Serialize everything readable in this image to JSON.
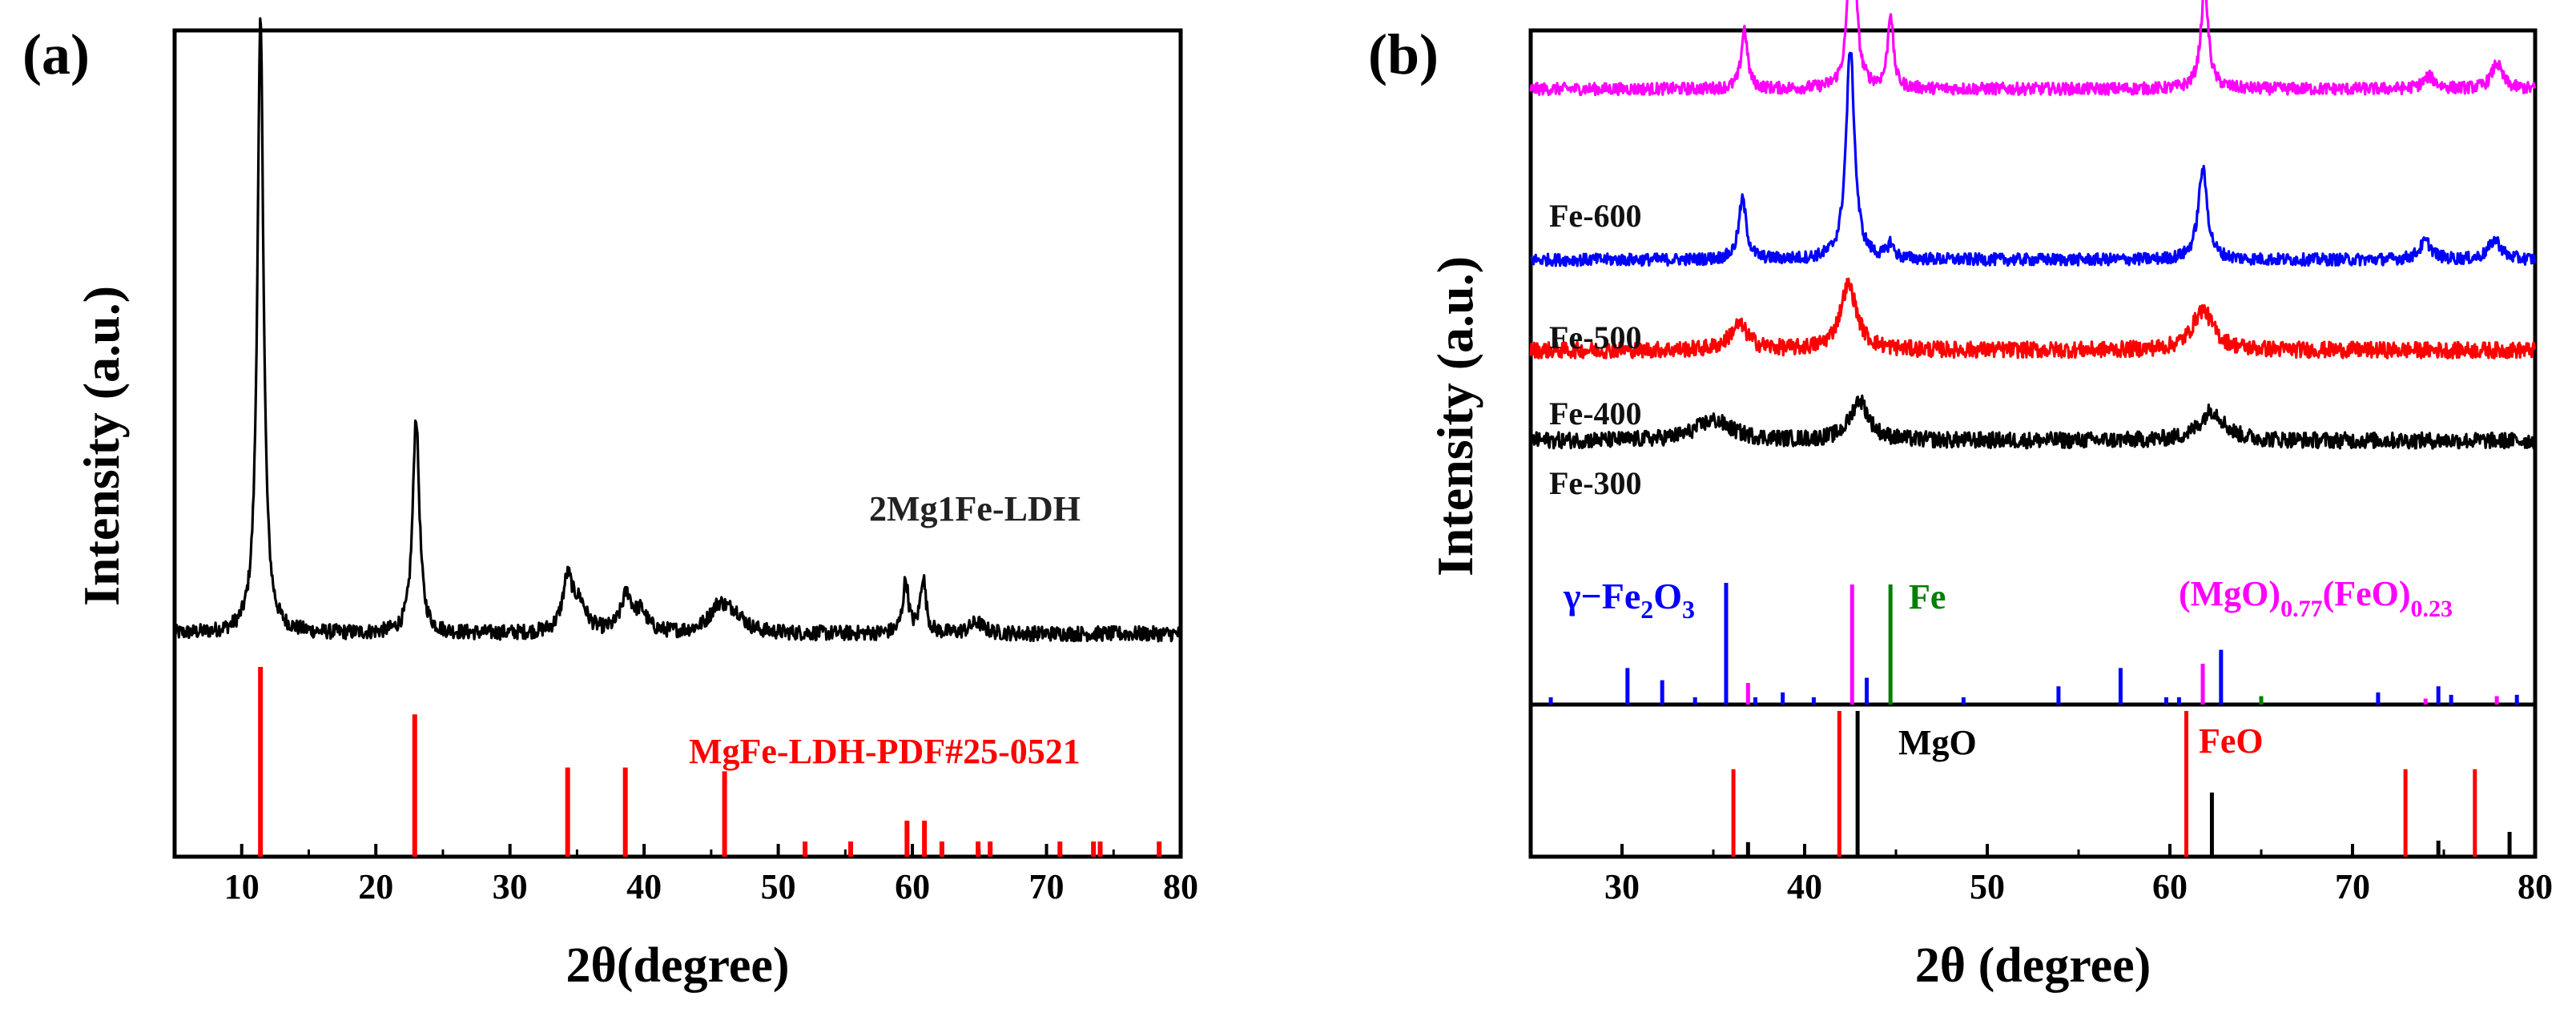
{
  "colors": {
    "axis": "#000000",
    "pattern_red": "#ff0000",
    "fe600": "#ff00ff",
    "fe500": "#0000ff",
    "fe400": "#ff0000",
    "fe300": "#000000",
    "gamma": "#0000ff",
    "fe_ref": "#008000",
    "mgofeo": "#ff00ff",
    "mgo": "#000000",
    "feo": "#ff0000"
  },
  "chart_data": [
    {
      "type": "line",
      "panel_label": "(a)",
      "xlabel": "2θ(degree)",
      "ylabel": "Intensity (a.u.)",
      "xlim": [
        5,
        80
      ],
      "xticks": [
        "10",
        "20",
        "30",
        "40",
        "50",
        "60",
        "70",
        "80"
      ],
      "y_units": "arbitrary",
      "series": [
        {
          "name": "2Mg1Fe-LDH",
          "baseline": 0.13,
          "noise": 0.01,
          "peaks": [
            {
              "x": 11.4,
              "h": 0.82,
              "w": 0.28
            },
            {
              "x": 23.0,
              "h": 0.29,
              "w": 0.3
            },
            {
              "x": 34.3,
              "h": 0.07,
              "w": 0.45
            },
            {
              "x": 35.2,
              "h": 0.035,
              "w": 0.6
            },
            {
              "x": 38.7,
              "h": 0.05,
              "w": 0.5
            },
            {
              "x": 39.8,
              "h": 0.025,
              "w": 0.5
            },
            {
              "x": 45.6,
              "h": 0.035,
              "w": 0.9
            },
            {
              "x": 46.8,
              "h": 0.02,
              "w": 0.8
            },
            {
              "x": 59.5,
              "h": 0.07,
              "w": 0.25
            },
            {
              "x": 60.8,
              "h": 0.075,
              "w": 0.25
            },
            {
              "x": 64.8,
              "h": 0.015,
              "w": 0.6
            }
          ]
        }
      ],
      "reference": {
        "name": "MgFe-LDH-PDF#25-0521",
        "positions": [
          11.4,
          22.9,
          34.3,
          38.6,
          46.0,
          52.0,
          55.4,
          59.6,
          60.9,
          62.2,
          64.9,
          65.8,
          71.0,
          73.5,
          74.0,
          78.4
        ],
        "intensities": [
          100,
          75,
          47,
          47,
          45,
          8,
          8,
          19,
          19,
          8,
          8,
          8,
          8,
          8,
          8,
          8
        ]
      },
      "annotations": [
        "2Mg1Fe-LDH",
        "MgFe-LDH-PDF#25-0521"
      ]
    },
    {
      "type": "line",
      "panel_label": "(b)",
      "xlabel": "2θ (degree)",
      "ylabel": "Intensity (a.u.)",
      "xlim": [
        25,
        80
      ],
      "xticks": [
        "30",
        "40",
        "50",
        "60",
        "70",
        "80"
      ],
      "y_units": "arbitrary",
      "series": [
        {
          "name": "Fe-600",
          "baseline": 0.76,
          "noise": 0.006,
          "peaks": [
            {
              "x": 36.7,
              "h": 0.06,
              "w": 0.2
            },
            {
              "x": 42.6,
              "h": 0.21,
              "w": 0.22
            },
            {
              "x": 44.7,
              "h": 0.075,
              "w": 0.18
            },
            {
              "x": 61.9,
              "h": 0.1,
              "w": 0.25
            },
            {
              "x": 74.2,
              "h": 0.012,
              "w": 0.4
            },
            {
              "x": 77.9,
              "h": 0.025,
              "w": 0.35
            }
          ]
        },
        {
          "name": "Fe-500",
          "baseline": 0.59,
          "noise": 0.006,
          "peaks": [
            {
              "x": 36.6,
              "h": 0.06,
              "w": 0.25
            },
            {
              "x": 42.5,
              "h": 0.21,
              "w": 0.28
            },
            {
              "x": 44.7,
              "h": 0.015,
              "w": 0.2
            },
            {
              "x": 61.8,
              "h": 0.09,
              "w": 0.3
            },
            {
              "x": 74.0,
              "h": 0.018,
              "w": 0.4
            },
            {
              "x": 77.8,
              "h": 0.02,
              "w": 0.4
            }
          ]
        },
        {
          "name": "Fe-400",
          "baseline": 0.5,
          "noise": 0.008,
          "peaks": [
            {
              "x": 36.4,
              "h": 0.025,
              "w": 0.6
            },
            {
              "x": 42.4,
              "h": 0.065,
              "w": 0.55
            },
            {
              "x": 61.8,
              "h": 0.04,
              "w": 0.7
            }
          ]
        },
        {
          "name": "Fe-300",
          "baseline": 0.41,
          "noise": 0.008,
          "peaks": [
            {
              "x": 35.0,
              "h": 0.02,
              "w": 1.2
            },
            {
              "x": 43.0,
              "h": 0.04,
              "w": 0.6
            },
            {
              "x": 62.3,
              "h": 0.03,
              "w": 0.8
            }
          ]
        }
      ],
      "references_top": [
        {
          "name": "γ−Fe2O3",
          "positions": [
            26.1,
            30.3,
            32.2,
            34.0,
            35.7,
            37.3,
            38.8,
            40.5,
            43.4,
            48.7,
            53.9,
            57.3,
            59.8,
            60.5,
            62.8,
            71.4,
            74.7,
            75.4,
            79.0
          ],
          "intensities": [
            6,
            30,
            20,
            6,
            100,
            6,
            10,
            6,
            22,
            6,
            15,
            30,
            6,
            6,
            45,
            10,
            15,
            8,
            8
          ]
        },
        {
          "name": "Fe",
          "positions": [
            44.7,
            65.0
          ],
          "intensities": [
            100,
            7
          ]
        },
        {
          "name": "(MgO)0.77(FeO)0.23",
          "positions": [
            36.9,
            42.6,
            61.8,
            74.0,
            77.9
          ],
          "intensities": [
            18,
            100,
            34,
            5,
            7
          ]
        }
      ],
      "references_bottom": [
        {
          "name": "MgO",
          "positions": [
            36.9,
            42.9,
            62.3,
            74.7,
            78.6
          ],
          "intensities": [
            10,
            100,
            44,
            11,
            17
          ]
        },
        {
          "name": "FeO",
          "positions": [
            36.1,
            41.9,
            60.9,
            72.9,
            76.7
          ],
          "intensities": [
            60,
            100,
            100,
            60,
            60
          ]
        }
      ],
      "annotations": [
        "Fe-600",
        "Fe-500",
        "Fe-400",
        "Fe-300",
        "γ−Fe2O3",
        "Fe",
        "(MgO)0.77(FeO)0.23",
        "MgO",
        "FeO"
      ]
    }
  ],
  "text": {
    "a": {
      "panel_label": "(a)",
      "ylabel": "Intensity (a.u.)",
      "xlabel": "2θ(degree)",
      "series_label": "2Mg1Fe-LDH",
      "ref_label": "MgFe-LDH-PDF#25-0521",
      "ticks": [
        "10",
        "20",
        "30",
        "40",
        "50",
        "60",
        "70",
        "80"
      ]
    },
    "b": {
      "panel_label": "(b)",
      "ylabel": "Intensity (a.u.)",
      "xlabel": "2θ (degree)",
      "ticks": [
        "30",
        "40",
        "50",
        "60",
        "70",
        "80"
      ],
      "fe600": "Fe-600",
      "fe500": "Fe-500",
      "fe400": "Fe-400",
      "fe300": "Fe-300",
      "gamma_prefix": "γ−Fe",
      "gamma_sub1": "2",
      "gamma_mid": "O",
      "gamma_sub2": "3",
      "fe_label": "Fe",
      "mgofeo_p1": "(MgO)",
      "mgofeo_s1": "0.77",
      "mgofeo_p2": "(FeO)",
      "mgofeo_s2": "0.23",
      "mgo_label": "MgO",
      "feo_label": "FeO"
    }
  }
}
